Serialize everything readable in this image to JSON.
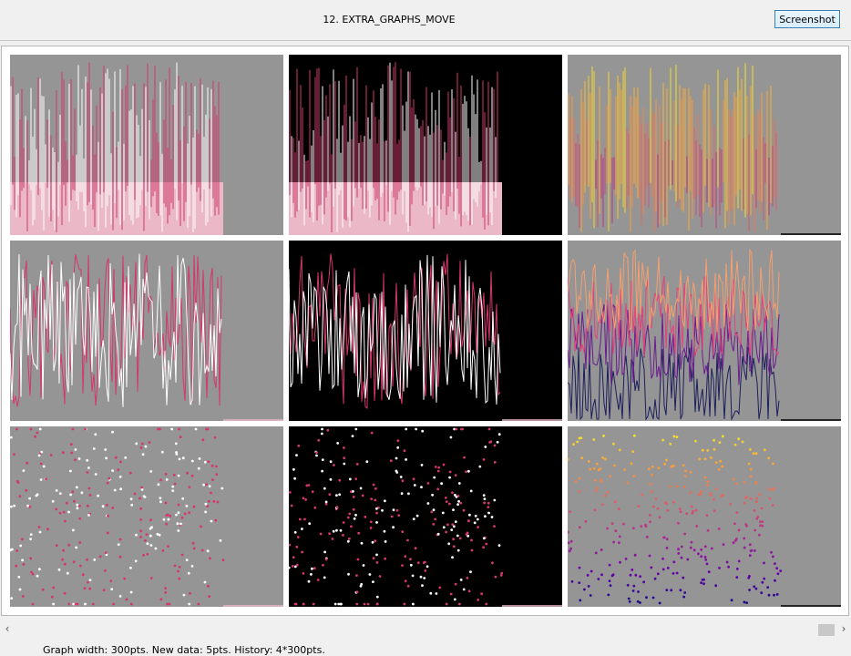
{
  "window": {
    "title": "12. EXTRA_GRAPHS_MOVE",
    "screenshot_button": "Screenshot"
  },
  "status": {
    "text": "Graph width: 300pts. New data: 5pts. History: 4*300pts."
  },
  "colors": {
    "pink_bg": "#eab8c7",
    "crimson": "#d2386b",
    "white": "#ffffff",
    "gray_bg": "#959595",
    "black_bg": "#000000",
    "plasma_dark": "#1c1f5a",
    "plasma_purple": "#6a1d8e",
    "plasma_pink": "#e0457b",
    "plasma_orange": "#f4a070"
  },
  "icons": {
    "scroll_left": "chevron-left-icon",
    "scroll_right": "chevron-right-icon"
  },
  "chart_data": [
    {
      "type": "bar",
      "style": "pink bars over crimson and white bars",
      "background": "gray",
      "fill": "pink",
      "history": "4*300pts"
    },
    {
      "type": "bar",
      "style": "pink bars over crimson and white bars",
      "background": "black",
      "fill": "pink",
      "history": "4*300pts"
    },
    {
      "type": "bar",
      "style": "plasma colormap bars",
      "background": "gray",
      "history": "4*300pts"
    },
    {
      "type": "line",
      "style": "crimson and white lines",
      "background": "gray",
      "history": "4*300pts"
    },
    {
      "type": "line",
      "style": "crimson and white lines",
      "background": "black",
      "history": "4*300pts"
    },
    {
      "type": "line",
      "style": "plasma colormap lines",
      "background": "gray",
      "history": "4*300pts"
    },
    {
      "type": "scatter",
      "style": "crimson and white dots",
      "background": "gray",
      "history": "4*300pts"
    },
    {
      "type": "scatter",
      "style": "crimson and white dots",
      "background": "black",
      "history": "4*300pts"
    },
    {
      "type": "scatter",
      "style": "plasma colormap dots",
      "background": "gray",
      "history": "4*300pts"
    }
  ]
}
